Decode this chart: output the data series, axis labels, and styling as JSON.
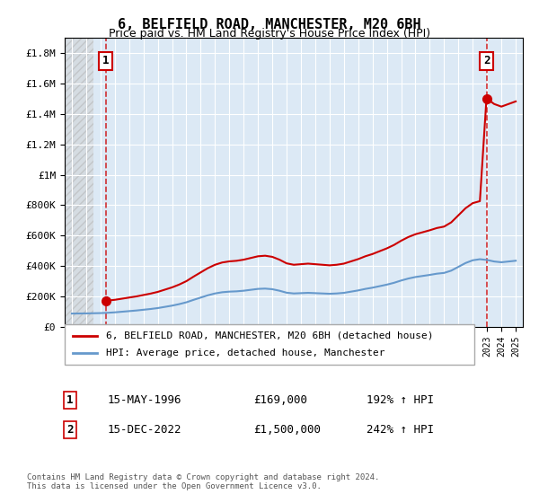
{
  "title": "6, BELFIELD ROAD, MANCHESTER, M20 6BH",
  "subtitle": "Price paid vs. HM Land Registry's House Price Index (HPI)",
  "legend_line1": "6, BELFIELD ROAD, MANCHESTER, M20 6BH (detached house)",
  "legend_line2": "HPI: Average price, detached house, Manchester",
  "annotation1_label": "1",
  "annotation1_date": "15-MAY-1996",
  "annotation1_price": "£169,000",
  "annotation1_hpi": "192% ↑ HPI",
  "annotation2_label": "2",
  "annotation2_date": "15-DEC-2022",
  "annotation2_price": "£1,500,000",
  "annotation2_hpi": "242% ↑ HPI",
  "footnote": "Contains HM Land Registry data © Crown copyright and database right 2024.\nThis data is licensed under the Open Government Licence v3.0.",
  "hpi_color": "#6699cc",
  "price_color": "#cc0000",
  "marker_color": "#cc0000",
  "dashed_color": "#cc0000",
  "bg_plot": "#dce9f5",
  "bg_hatch": "#e8e8e8",
  "ylim": [
    0,
    1900000
  ],
  "yticks": [
    0,
    200000,
    400000,
    600000,
    800000,
    1000000,
    1200000,
    1400000,
    1600000,
    1800000
  ],
  "xlim_start": 1993.5,
  "xlim_end": 2025.5,
  "sale1_x": 1996.37,
  "sale1_y": 169000,
  "sale2_x": 2022.96,
  "sale2_y": 1500000,
  "hatch_xlim_end": 1995.5
}
